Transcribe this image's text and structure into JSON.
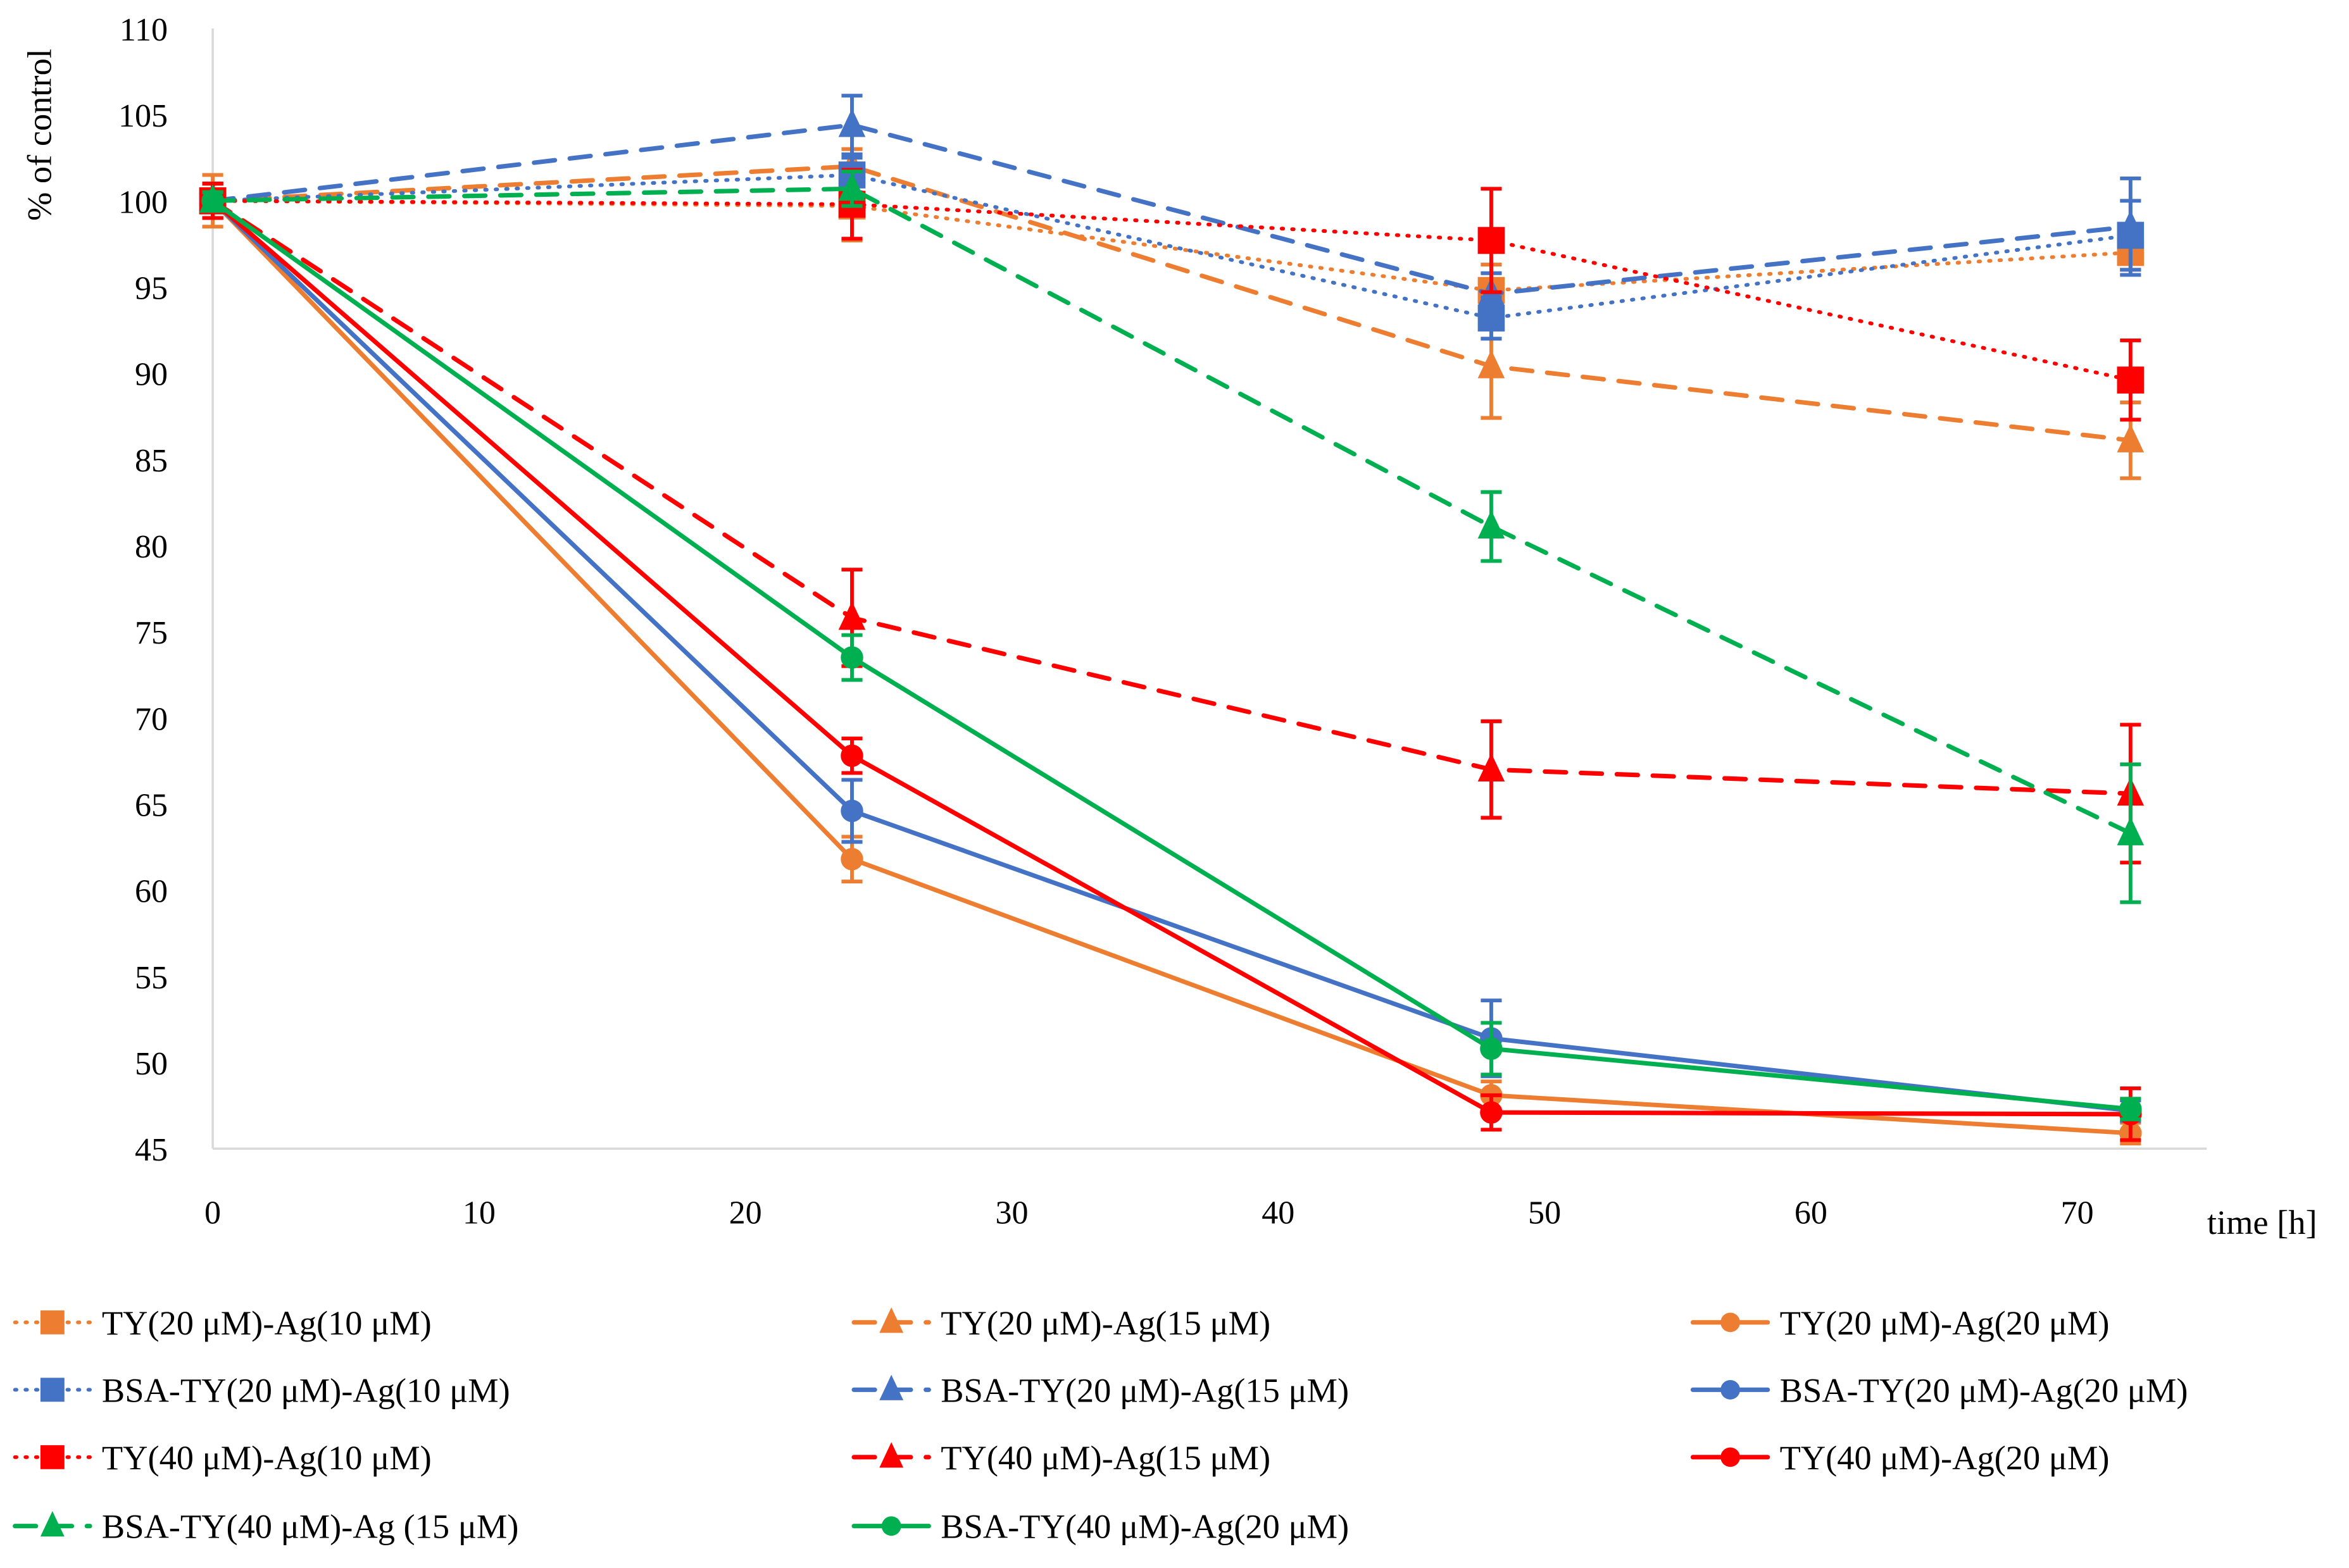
{
  "chart_data": {
    "type": "line",
    "title": "",
    "xlabel": "time [h]",
    "ylabel": "% of control",
    "xlim": [
      0,
      75
    ],
    "ylim": [
      45,
      110
    ],
    "xticks": [
      0,
      10,
      20,
      30,
      40,
      50,
      60,
      70
    ],
    "yticks": [
      45,
      50,
      55,
      60,
      65,
      70,
      75,
      80,
      85,
      90,
      95,
      100,
      105,
      110
    ],
    "grid": false,
    "legend_position": "bottom",
    "x": [
      0,
      24,
      48,
      72
    ],
    "series": [
      {
        "name": "TY(20 μM)-Ag(10 μM)",
        "color": "#ED7D31",
        "dash": "dotted",
        "marker": "square",
        "values": [
          100,
          99.7,
          94.8,
          97.0
        ],
        "errors": [
          1.5,
          2.0,
          1.5,
          1.0
        ]
      },
      {
        "name": "TY(20 μM)-Ag(15 μM)",
        "color": "#ED7D31",
        "dash": "dashed",
        "marker": "triangle",
        "values": [
          100,
          102.0,
          90.4,
          86.1
        ],
        "errors": [
          1.0,
          1.0,
          3.0,
          2.2
        ]
      },
      {
        "name": "TY(20 μM)-Ag(20 μM)",
        "color": "#ED7D31",
        "dash": "solid",
        "marker": "circle",
        "values": [
          100,
          61.8,
          48.1,
          45.9
        ],
        "errors": [
          1.0,
          1.3,
          0.8,
          0.6
        ]
      },
      {
        "name": "BSA-TY(20 μM)-Ag(10 μM)",
        "color": "#4472C4",
        "dash": "dotted",
        "marker": "square",
        "values": [
          100,
          101.5,
          93.2,
          98.0
        ],
        "errors": [
          0.5,
          1.0,
          1.2,
          2.0
        ]
      },
      {
        "name": "BSA-TY(20 μM)-Ag(15 μM)",
        "color": "#4472C4",
        "dash": "dashed",
        "marker": "triangle",
        "values": [
          100,
          104.4,
          94.6,
          98.5
        ],
        "errors": [
          0.5,
          1.7,
          1.2,
          2.8
        ]
      },
      {
        "name": "BSA-TY(20 μM)-Ag(20 μM)",
        "color": "#4472C4",
        "dash": "solid",
        "marker": "circle",
        "values": [
          100,
          64.6,
          51.4,
          47.2
        ],
        "errors": [
          0.5,
          1.8,
          2.2,
          0.6
        ]
      },
      {
        "name": "TY(40 μM)-Ag(10 μM)",
        "color": "#FF0000",
        "dash": "dotted",
        "marker": "square",
        "values": [
          100,
          99.8,
          97.7,
          89.6
        ],
        "errors": [
          1.0,
          2.0,
          3.0,
          2.3
        ]
      },
      {
        "name": "TY(40 μM)-Ag(15 μM)",
        "color": "#FF0000",
        "dash": "dashed",
        "marker": "triangle",
        "values": [
          100,
          75.8,
          67.0,
          65.6
        ],
        "errors": [
          1.0,
          2.8,
          2.8,
          4.0
        ]
      },
      {
        "name": "TY(40 μM)-Ag(20 μM)",
        "color": "#FF0000",
        "dash": "solid",
        "marker": "circle",
        "values": [
          100,
          67.8,
          47.1,
          47.0
        ],
        "errors": [
          1.0,
          1.0,
          1.0,
          1.5
        ]
      },
      {
        "name": "BSA-TY(40 μM)-Ag (15 μM)",
        "color": "#00B050",
        "dash": "dashed",
        "marker": "triangle",
        "values": [
          100,
          100.7,
          81.1,
          63.3
        ],
        "errors": [
          0.5,
          1.0,
          2.0,
          4.0
        ]
      },
      {
        "name": "BSA-TY(40 μM)-Ag(20 μM)",
        "color": "#00B050",
        "dash": "solid",
        "marker": "circle",
        "values": [
          100,
          73.5,
          50.8,
          47.3
        ],
        "errors": [
          0.5,
          1.3,
          1.5,
          0.6
        ]
      }
    ]
  }
}
